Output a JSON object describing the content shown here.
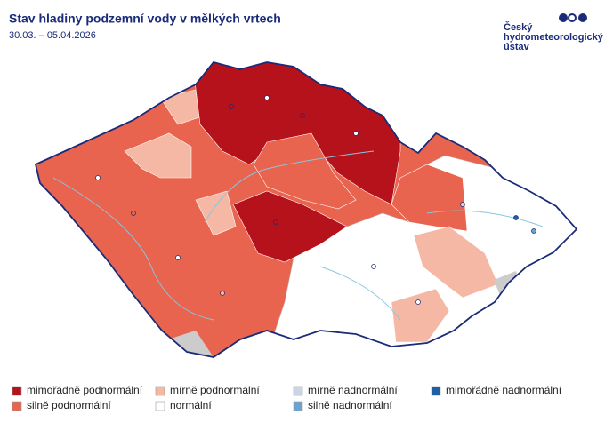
{
  "header": {
    "title": "Stav hladiny podzemní vody v mělkých vrtech",
    "subtitle": "30.03. – 05.04.2026"
  },
  "logo": {
    "lines": [
      "Český",
      "hydrometeorologický",
      "ústav"
    ]
  },
  "legend": [
    {
      "label": "mimořádně podnormální",
      "color": "#b5121b"
    },
    {
      "label": "silně podnormální",
      "color": "#e8644f"
    },
    {
      "label": "mírně podnormální",
      "color": "#f4b8a4"
    },
    {
      "label": "normální",
      "color": "#ffffff"
    },
    {
      "label": "mírně nadnormální",
      "color": "#c9d6e6"
    },
    {
      "label": "silně nadnormální",
      "color": "#6aa2d0"
    },
    {
      "label": "mimořádně nadnormální",
      "color": "#1f5fa3"
    }
  ]
}
